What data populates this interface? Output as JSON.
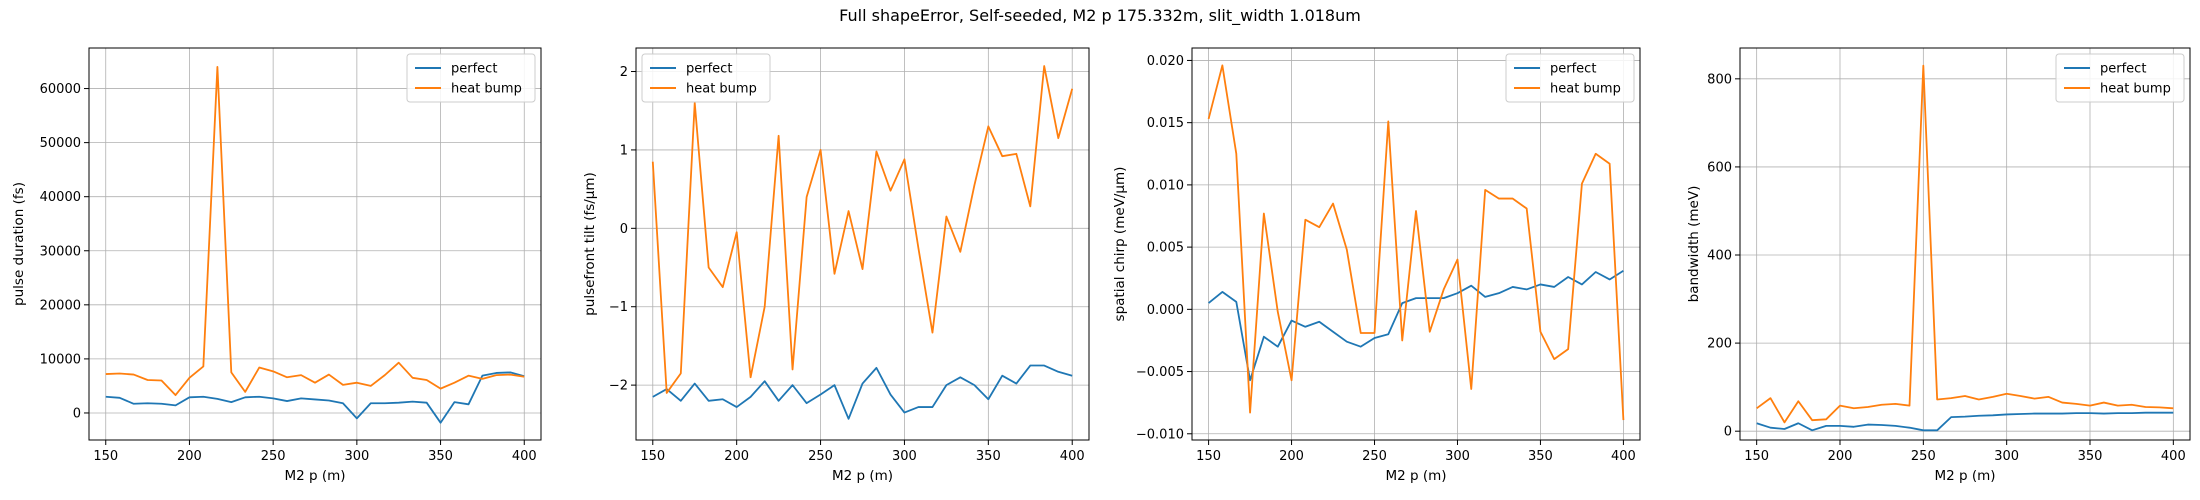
{
  "figure": {
    "suptitle": "Full shapeError, Self-seeded, M2 p 175.332m, slit_width 1.018um"
  },
  "colors": {
    "perfect": "#1f77b4",
    "heat_bump": "#ff7f0e",
    "grid": "#b0b0b0"
  },
  "chart_data": [
    {
      "type": "line",
      "xlabel": "M2 p (m)",
      "ylabel": "pulse duration (fs)",
      "xlim": [
        140,
        410
      ],
      "ylim": [
        -5000,
        67500
      ],
      "xticks": [
        150,
        200,
        250,
        300,
        350,
        400
      ],
      "yticks": [
        0,
        10000,
        20000,
        30000,
        40000,
        50000,
        60000
      ],
      "ytick_labels": [
        "0",
        "10000",
        "20000",
        "30000",
        "40000",
        "50000",
        "60000"
      ],
      "grid": true,
      "legend": "upper right",
      "x": [
        150,
        158.3,
        166.7,
        175,
        183.3,
        191.7,
        200,
        208.3,
        216.7,
        225,
        233.3,
        241.7,
        250,
        258.3,
        266.7,
        275,
        283.3,
        291.7,
        300,
        308.3,
        316.7,
        325,
        333.3,
        341.7,
        350,
        358.3,
        366.7,
        375,
        383.3,
        391.7,
        400
      ],
      "series": [
        {
          "name": "perfect",
          "color": "#1f77b4",
          "values": [
            3000,
            2800,
            1700,
            1800,
            1700,
            1400,
            2900,
            3000,
            2600,
            2000,
            2900,
            3000,
            2700,
            2200,
            2700,
            2500,
            2300,
            1800,
            -1000,
            1800,
            1800,
            1900,
            2100,
            1900,
            -1800,
            2000,
            1600,
            6900,
            7400,
            7500,
            6800
          ]
        },
        {
          "name": "heat bump",
          "color": "#ff7f0e",
          "values": [
            7200,
            7300,
            7100,
            6100,
            6000,
            3300,
            6500,
            8600,
            64000,
            7500,
            3900,
            8400,
            7700,
            6600,
            7000,
            5600,
            7100,
            5200,
            5600,
            5000,
            7000,
            9300,
            6500,
            6100,
            4500,
            5600,
            6900,
            6300,
            7000,
            7100,
            6700
          ]
        }
      ]
    },
    {
      "type": "line",
      "xlabel": "M2 p (m)",
      "ylabel": "pulsefront tilt (fs/μm)",
      "xlim": [
        140,
        410
      ],
      "ylim": [
        -2.7,
        2.3
      ],
      "xticks": [
        150,
        200,
        250,
        300,
        350,
        400
      ],
      "yticks": [
        -2,
        -1,
        0,
        1,
        2
      ],
      "ytick_labels": [
        "−2",
        "−1",
        "0",
        "1",
        "2"
      ],
      "grid": true,
      "legend": "upper left",
      "x": [
        150,
        158.3,
        166.7,
        175,
        183.3,
        191.7,
        200,
        208.3,
        216.7,
        225,
        233.3,
        241.7,
        250,
        258.3,
        266.7,
        275,
        283.3,
        291.7,
        300,
        308.3,
        316.7,
        325,
        333.3,
        341.7,
        350,
        358.3,
        366.7,
        375,
        383.3,
        391.7,
        400
      ],
      "series": [
        {
          "name": "perfect",
          "color": "#1f77b4",
          "values": [
            -2.15,
            -2.05,
            -2.2,
            -1.98,
            -2.2,
            -2.18,
            -2.28,
            -2.15,
            -1.95,
            -2.2,
            -2.0,
            -2.23,
            -2.12,
            -2.0,
            -2.43,
            -1.98,
            -1.78,
            -2.12,
            -2.35,
            -2.28,
            -2.28,
            -2.0,
            -1.9,
            -2.0,
            -2.18,
            -1.88,
            -1.98,
            -1.75,
            -1.75,
            -1.83,
            -1.88
          ]
        },
        {
          "name": "heat bump",
          "color": "#ff7f0e",
          "values": [
            0.85,
            -2.1,
            -1.85,
            1.6,
            -0.5,
            -0.75,
            -0.05,
            -1.9,
            -1.0,
            1.18,
            -1.8,
            0.4,
            1.0,
            -0.58,
            0.22,
            -0.52,
            0.98,
            0.48,
            0.88,
            -0.25,
            -1.33,
            0.15,
            -0.3,
            0.55,
            1.3,
            0.92,
            0.95,
            0.28,
            2.07,
            1.15,
            1.78
          ]
        }
      ]
    },
    {
      "type": "line",
      "xlabel": "M2 p (m)",
      "ylabel": "spatial chirp (meV/μm)",
      "xlim": [
        140,
        410
      ],
      "ylim": [
        -0.0105,
        0.021
      ],
      "xticks": [
        150,
        200,
        250,
        300,
        350,
        400
      ],
      "yticks": [
        -0.01,
        -0.005,
        0.0,
        0.005,
        0.01,
        0.015,
        0.02
      ],
      "ytick_labels": [
        "−0.010",
        "−0.005",
        "0.000",
        "0.005",
        "0.010",
        "0.015",
        "0.020"
      ],
      "grid": true,
      "legend": "upper right",
      "x": [
        150,
        158.3,
        166.7,
        175,
        183.3,
        191.7,
        200,
        208.3,
        216.7,
        225,
        233.3,
        241.7,
        250,
        258.3,
        266.7,
        275,
        283.3,
        291.7,
        300,
        308.3,
        316.7,
        325,
        333.3,
        341.7,
        350,
        358.3,
        366.7,
        375,
        383.3,
        391.7,
        400
      ],
      "series": [
        {
          "name": "perfect",
          "color": "#1f77b4",
          "values": [
            0.0005,
            0.0014,
            0.0006,
            -0.0057,
            -0.0022,
            -0.003,
            -0.0009,
            -0.0014,
            -0.001,
            -0.0018,
            -0.0026,
            -0.003,
            -0.0023,
            -0.002,
            0.0005,
            0.0009,
            0.0009,
            0.0009,
            0.0013,
            0.0019,
            0.001,
            0.0013,
            0.0018,
            0.0016,
            0.002,
            0.0018,
            0.0026,
            0.002,
            0.003,
            0.0024,
            0.0031
          ]
        },
        {
          "name": "heat bump",
          "color": "#ff7f0e",
          "values": [
            0.0153,
            0.0196,
            0.0125,
            -0.0083,
            0.0077,
            -0.0002,
            -0.0057,
            0.0072,
            0.0066,
            0.0085,
            0.0048,
            -0.0019,
            -0.0019,
            0.0151,
            -0.0025,
            0.0079,
            -0.0018,
            0.0016,
            0.004,
            -0.0064,
            0.0096,
            0.0089,
            0.0089,
            0.0081,
            -0.0018,
            -0.004,
            -0.0032,
            0.0101,
            0.0125,
            0.0117,
            -0.0089
          ]
        }
      ]
    },
    {
      "type": "line",
      "xlabel": "M2 p (m)",
      "ylabel": "bandwidth (meV)",
      "xlim": [
        140,
        410
      ],
      "ylim": [
        -20,
        870
      ],
      "xticks": [
        150,
        200,
        250,
        300,
        350,
        400
      ],
      "yticks": [
        0,
        200,
        400,
        600,
        800
      ],
      "ytick_labels": [
        "0",
        "200",
        "400",
        "600",
        "800"
      ],
      "grid": true,
      "legend": "upper right",
      "x": [
        150,
        158.3,
        166.7,
        175,
        183.3,
        191.7,
        200,
        208.3,
        216.7,
        225,
        233.3,
        241.7,
        250,
        258.3,
        266.7,
        275,
        283.3,
        291.7,
        300,
        308.3,
        316.7,
        325,
        333.3,
        341.7,
        350,
        358.3,
        366.7,
        375,
        383.3,
        391.7,
        400
      ],
      "series": [
        {
          "name": "perfect",
          "color": "#1f77b4",
          "values": [
            18,
            8,
            5,
            18,
            2,
            12,
            12,
            10,
            15,
            14,
            12,
            8,
            2,
            2,
            32,
            33,
            35,
            36,
            38,
            39,
            40,
            40,
            40,
            41,
            41,
            40,
            41,
            41,
            42,
            42,
            42
          ]
        },
        {
          "name": "heat bump",
          "color": "#ff7f0e",
          "values": [
            52,
            75,
            20,
            68,
            25,
            27,
            58,
            52,
            55,
            60,
            62,
            58,
            830,
            72,
            75,
            80,
            72,
            78,
            85,
            80,
            74,
            78,
            65,
            62,
            58,
            65,
            58,
            60,
            55,
            54,
            52
          ]
        }
      ]
    }
  ]
}
